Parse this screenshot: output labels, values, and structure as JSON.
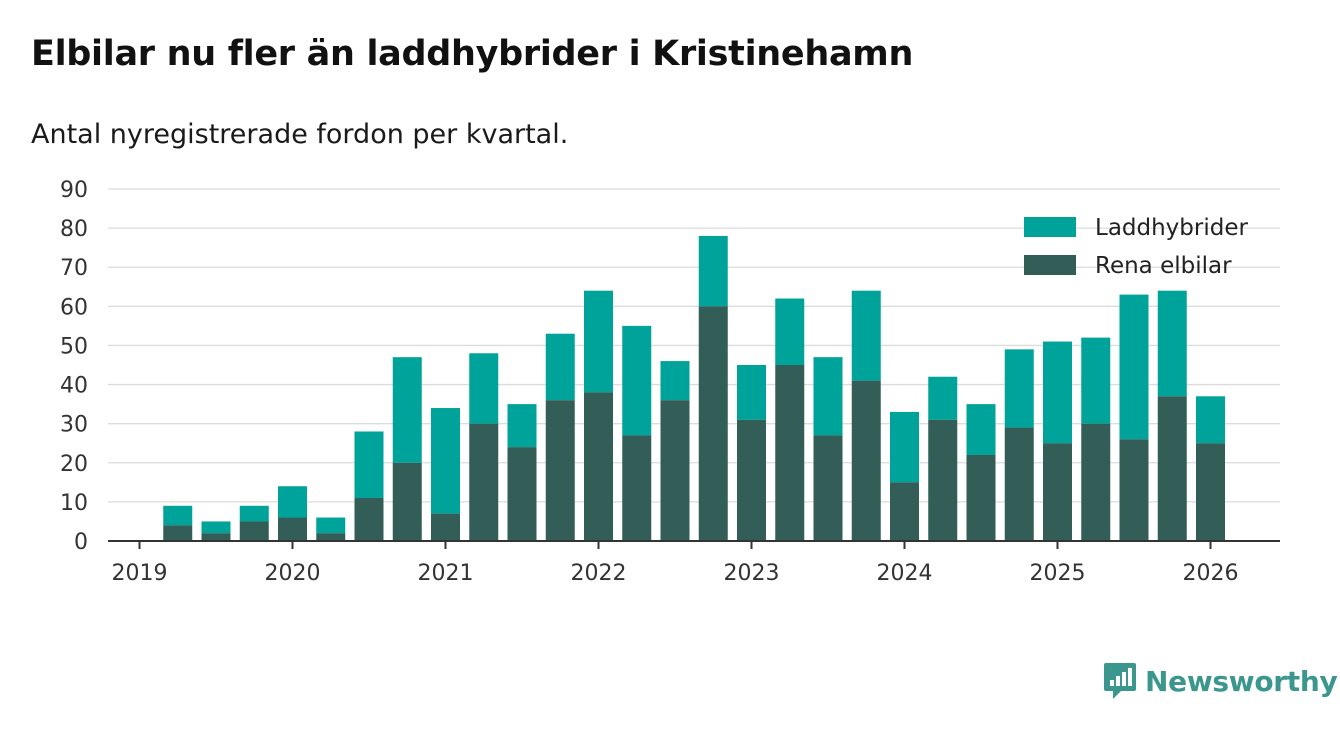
{
  "chart_data": {
    "type": "bar",
    "stacked": true,
    "title": "Elbilar nu fler än laddhybrider i Kristinehamn",
    "subtitle": "Antal nyregistrerade fordon per kvartal.",
    "xlabel": "",
    "ylabel": "",
    "ylim": [
      0,
      90
    ],
    "yticks": [
      0,
      10,
      20,
      30,
      40,
      50,
      60,
      70,
      80,
      90
    ],
    "xticks": [
      "2019",
      "2020",
      "2021",
      "2022",
      "2023",
      "2024",
      "2025",
      "2026"
    ],
    "categories": [
      "2019 Q1",
      "2019 Q2",
      "2019 Q3",
      "2019 Q4",
      "2020 Q1",
      "2020 Q2",
      "2020 Q3",
      "2020 Q4",
      "2021 Q1",
      "2021 Q2",
      "2021 Q3",
      "2021 Q4",
      "2022 Q1",
      "2022 Q2",
      "2022 Q3",
      "2022 Q4",
      "2023 Q1",
      "2023 Q2",
      "2023 Q3",
      "2023 Q4",
      "2024 Q1",
      "2024 Q2",
      "2024 Q3",
      "2024 Q4",
      "2025 Q1",
      "2025 Q2",
      "2025 Q3",
      "2025 Q4"
    ],
    "series": [
      {
        "name": "Rena elbilar",
        "color": "#335e57",
        "values": [
          4,
          2,
          5,
          6,
          2,
          11,
          20,
          7,
          30,
          24,
          36,
          38,
          27,
          36,
          60,
          31,
          45,
          27,
          41,
          15,
          31,
          22,
          29,
          25,
          30,
          26,
          37,
          25
        ]
      },
      {
        "name": "Laddhybrider",
        "color": "#00a39a",
        "values": [
          5,
          3,
          4,
          8,
          4,
          17,
          27,
          27,
          18,
          11,
          17,
          26,
          28,
          10,
          18,
          14,
          17,
          20,
          23,
          18,
          11,
          13,
          20,
          26,
          22,
          37,
          27,
          12
        ]
      }
    ],
    "legend": [
      "Laddhybrider",
      "Rena elbilar"
    ],
    "legend_position": "top-right",
    "grid": true
  },
  "brand": {
    "name": "Newsworthy",
    "color": "#3b968e"
  }
}
